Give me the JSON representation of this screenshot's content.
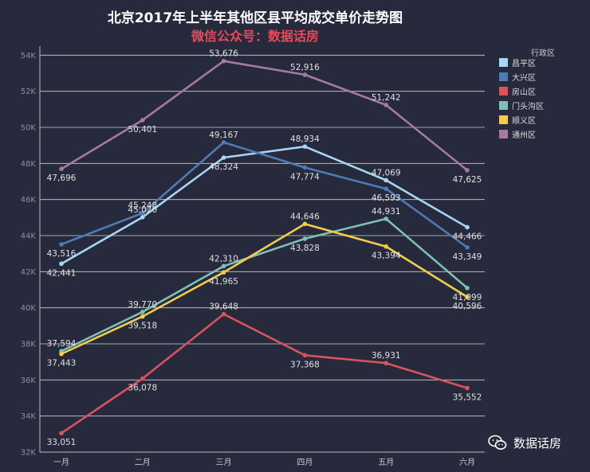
{
  "chart_data": {
    "type": "line",
    "title": "北京2017年上半年其他区县平均成交单价走势图",
    "subtitle": "微信公众号：数据话房",
    "categories": [
      "一月",
      "二月",
      "三月",
      "四月",
      "五月",
      "六月"
    ],
    "ylim": [
      32000,
      54500
    ],
    "yticks": [
      32000,
      34000,
      36000,
      38000,
      40000,
      42000,
      44000,
      46000,
      48000,
      50000,
      52000,
      54000
    ],
    "ytick_labels": [
      "32K",
      "34K",
      "36K",
      "38K",
      "40K",
      "42K",
      "44K",
      "46K",
      "48K",
      "50K",
      "52K",
      "54K"
    ],
    "legend_title": "行政区",
    "legend_position": "top-right",
    "grid": true,
    "series": [
      {
        "name": "昌平区",
        "color": "#a9d6f5",
        "values": [
          42441,
          45020,
          48324,
          48934,
          47069,
          44466
        ],
        "labels": [
          "42,441",
          "45,020",
          "48,324",
          "48,934",
          "47,069",
          "44,466"
        ]
      },
      {
        "name": "大兴区",
        "color": "#4f7ab3",
        "values": [
          43516,
          45248,
          49167,
          47774,
          46593,
          43349
        ],
        "labels": [
          "43,516",
          "45,248",
          "49,167",
          "47,774",
          "46,593",
          "43,349"
        ]
      },
      {
        "name": "房山区",
        "color": "#d9535f",
        "values": [
          33051,
          36078,
          39648,
          37368,
          36931,
          35552
        ],
        "labels": [
          "33,051",
          "36,078",
          "39,648",
          "37,368",
          "36,931",
          "35,552"
        ]
      },
      {
        "name": "门头沟区",
        "color": "#7fbfb5",
        "values": [
          37594,
          39770,
          42310,
          43828,
          44931,
          41099
        ],
        "labels": [
          "37,594",
          "39,770",
          "42,310",
          "43,828",
          "44,931",
          "41,099"
        ]
      },
      {
        "name": "顺义区",
        "color": "#f2cd4d",
        "values": [
          37443,
          39518,
          41965,
          44646,
          43394,
          40596
        ],
        "labels": [
          "37,443",
          "39,518",
          "41,965",
          "44,646",
          "43,394",
          "40,596"
        ]
      },
      {
        "name": "通州区",
        "color": "#a679a3",
        "values": [
          47696,
          50401,
          53676,
          52916,
          51242,
          47625
        ],
        "labels": [
          "47,696",
          "50,401",
          "53,676",
          "52,916",
          "51,242",
          "47,625"
        ]
      }
    ]
  },
  "watermark": {
    "text": "数据话房",
    "icon": "wechat-icon"
  }
}
